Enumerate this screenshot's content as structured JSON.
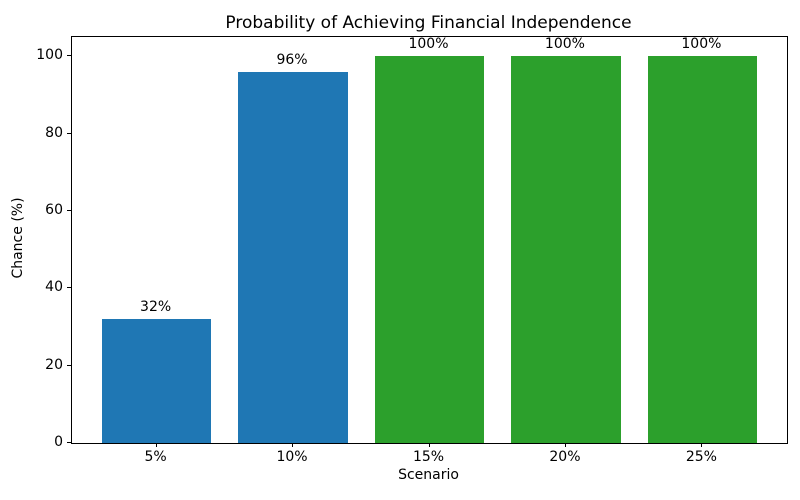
{
  "chart_data": {
    "type": "bar",
    "title": "Probability of Achieving Financial Independence",
    "xlabel": "Scenario",
    "ylabel": "Chance (%)",
    "categories": [
      "5%",
      "10%",
      "15%",
      "20%",
      "25%"
    ],
    "values": [
      32,
      96,
      100,
      100,
      100
    ],
    "bar_labels": [
      "32%",
      "96%",
      "100%",
      "100%",
      "100%"
    ],
    "bar_colors": [
      "#1f77b4",
      "#1f77b4",
      "#2ca02c",
      "#2ca02c",
      "#2ca02c"
    ],
    "ylim": [
      0,
      105
    ],
    "yticks": [
      0,
      20,
      40,
      60,
      80,
      100
    ],
    "grid": false,
    "legend_position": "none",
    "colors": {
      "blue_bar": "#1f77b4",
      "green_bar": "#2ca02c",
      "axis": "#000000",
      "background": "#ffffff"
    }
  }
}
